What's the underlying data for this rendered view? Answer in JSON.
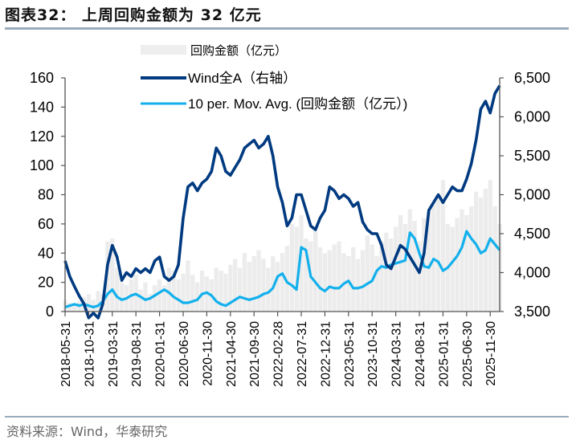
{
  "header": {
    "title": "图表32： 上周回购金额为 32 亿元"
  },
  "footer": {
    "source": "资料来源：Wind，华泰研究"
  },
  "chart_data": {
    "type": "bar+line",
    "title": "上周回购金额为 32 亿元",
    "legend": [
      {
        "name": "回购金额（亿元）",
        "type": "bar",
        "color": "#eeeeee"
      },
      {
        "name": "Wind全A（右轴）",
        "type": "line",
        "color": "#003a80"
      },
      {
        "name": "10 per. Mov. Avg. (回购金额（亿元）)",
        "type": "line",
        "color": "#13b0ec"
      }
    ],
    "legend_placement": "top-center",
    "left_axis": {
      "ylim": [
        0,
        160
      ],
      "ticks": [
        0,
        20,
        40,
        60,
        80,
        100,
        120,
        140,
        160
      ]
    },
    "right_axis": {
      "label": "右轴",
      "ylim": [
        3500,
        6500
      ],
      "ticks": [
        3500,
        4000,
        4500,
        5000,
        5500,
        6000,
        6500
      ],
      "tick_labels": [
        "3,500",
        "4,000",
        "4,500",
        "5,000",
        "5,500",
        "6,000",
        "6,500"
      ]
    },
    "x_tick_labels": [
      "2018-05-31",
      "2018-10-31",
      "2019-03-31",
      "2019-08-31",
      "2020-01-31",
      "2020-06-30",
      "2020-11-30",
      "2021-04-30",
      "2021-09-30",
      "2022-02-28",
      "2022-07-31",
      "2022-12-31",
      "2023-05-31",
      "2023-10-31",
      "2024-03-31",
      "2024-08-31",
      "2025-01-31",
      "2025-06-30",
      "2025-11-30"
    ],
    "x_months": [
      "2018-05",
      "2018-06",
      "2018-07",
      "2018-08",
      "2018-09",
      "2018-10",
      "2018-11",
      "2018-12",
      "2019-01",
      "2019-02",
      "2019-03",
      "2019-04",
      "2019-05",
      "2019-06",
      "2019-07",
      "2019-08",
      "2019-09",
      "2019-10",
      "2019-11",
      "2019-12",
      "2020-01",
      "2020-02",
      "2020-03",
      "2020-04",
      "2020-05",
      "2020-06",
      "2020-07",
      "2020-08",
      "2020-09",
      "2020-10",
      "2020-11",
      "2020-12",
      "2021-01",
      "2021-02",
      "2021-03",
      "2021-04",
      "2021-05",
      "2021-06",
      "2021-07",
      "2021-08",
      "2021-09",
      "2021-10",
      "2021-11",
      "2021-12",
      "2022-01",
      "2022-02",
      "2022-03",
      "2022-04",
      "2022-05",
      "2022-06",
      "2022-07",
      "2022-08",
      "2022-09",
      "2022-10",
      "2022-11",
      "2022-12",
      "2023-01",
      "2023-02",
      "2023-03",
      "2023-04",
      "2023-05",
      "2023-06",
      "2023-07",
      "2023-08",
      "2023-09",
      "2023-10",
      "2023-11",
      "2023-12",
      "2024-01",
      "2024-02",
      "2024-03",
      "2024-04",
      "2024-05",
      "2024-06",
      "2024-07",
      "2024-08",
      "2024-09",
      "2024-10",
      "2024-11",
      "2024-12",
      "2025-01",
      "2025-02",
      "2025-03",
      "2025-04",
      "2025-05",
      "2025-06",
      "2025-07",
      "2025-08",
      "2025-09",
      "2025-10",
      "2025-11",
      "2025-12",
      "2026-01"
    ],
    "series": [
      {
        "name": "回购金额（亿元）",
        "axis": "left",
        "values": [
          8,
          6,
          5,
          7,
          10,
          12,
          8,
          14,
          12,
          48,
          50,
          30,
          20,
          18,
          22,
          25,
          15,
          20,
          12,
          18,
          22,
          18,
          30,
          28,
          22,
          26,
          35,
          25,
          20,
          28,
          24,
          22,
          30,
          28,
          26,
          32,
          36,
          30,
          40,
          34,
          38,
          42,
          36,
          30,
          38,
          34,
          40,
          45,
          60,
          58,
          66,
          50,
          48,
          55,
          44,
          40,
          42,
          46,
          48,
          40,
          38,
          44,
          36,
          42,
          52,
          46,
          38,
          48,
          54,
          50,
          58,
          66,
          60,
          70,
          62,
          48,
          64,
          68,
          74,
          80,
          90,
          60,
          58,
          64,
          70,
          66,
          72,
          82,
          78,
          84,
          90,
          72,
          60
        ]
      },
      {
        "name": "Wind全A（右轴）",
        "axis": "right",
        "values": [
          4150,
          3950,
          3820,
          3700,
          3600,
          3420,
          3480,
          3380,
          3600,
          4100,
          4350,
          4200,
          3900,
          4000,
          3950,
          4050,
          4000,
          4050,
          4000,
          4150,
          4200,
          3950,
          3900,
          3950,
          4100,
          4700,
          5100,
          5150,
          5050,
          5150,
          5200,
          5300,
          5600,
          5500,
          5300,
          5250,
          5350,
          5450,
          5600,
          5650,
          5700,
          5600,
          5650,
          5750,
          5500,
          5100,
          4900,
          4600,
          4700,
          5000,
          5000,
          4800,
          4600,
          4550,
          4700,
          4800,
          5100,
          5050,
          4950,
          5000,
          4950,
          4850,
          4900,
          4650,
          4550,
          4500,
          4500,
          4350,
          4100,
          4050,
          4200,
          4350,
          4300,
          4200,
          4100,
          4000,
          4250,
          4800,
          4900,
          5000,
          4900,
          5000,
          5100,
          5050,
          5050,
          5200,
          5400,
          5700,
          6100,
          6200,
          6050,
          6300,
          6400
        ]
      },
      {
        "name": "10 per. Mov. Avg. (回购金额（亿元）)",
        "axis": "left",
        "values": [
          3,
          4,
          5,
          4,
          5,
          4,
          3,
          4,
          7,
          12,
          15,
          10,
          8,
          9,
          11,
          12,
          10,
          8,
          9,
          11,
          13,
          15,
          13,
          10,
          8,
          6,
          6,
          7,
          8,
          12,
          13,
          11,
          7,
          5,
          4,
          6,
          8,
          10,
          9,
          8,
          9,
          10,
          12,
          13,
          16,
          24,
          26,
          20,
          18,
          15,
          44,
          42,
          24,
          20,
          16,
          14,
          17,
          16,
          16,
          19,
          21,
          16,
          16,
          17,
          19,
          21,
          28,
          31,
          30,
          32,
          33,
          34,
          35,
          54,
          50,
          40,
          31,
          30,
          36,
          34,
          28,
          30,
          34,
          38,
          44,
          55,
          50,
          46,
          40,
          42,
          50,
          46,
          42
        ]
      }
    ]
  }
}
